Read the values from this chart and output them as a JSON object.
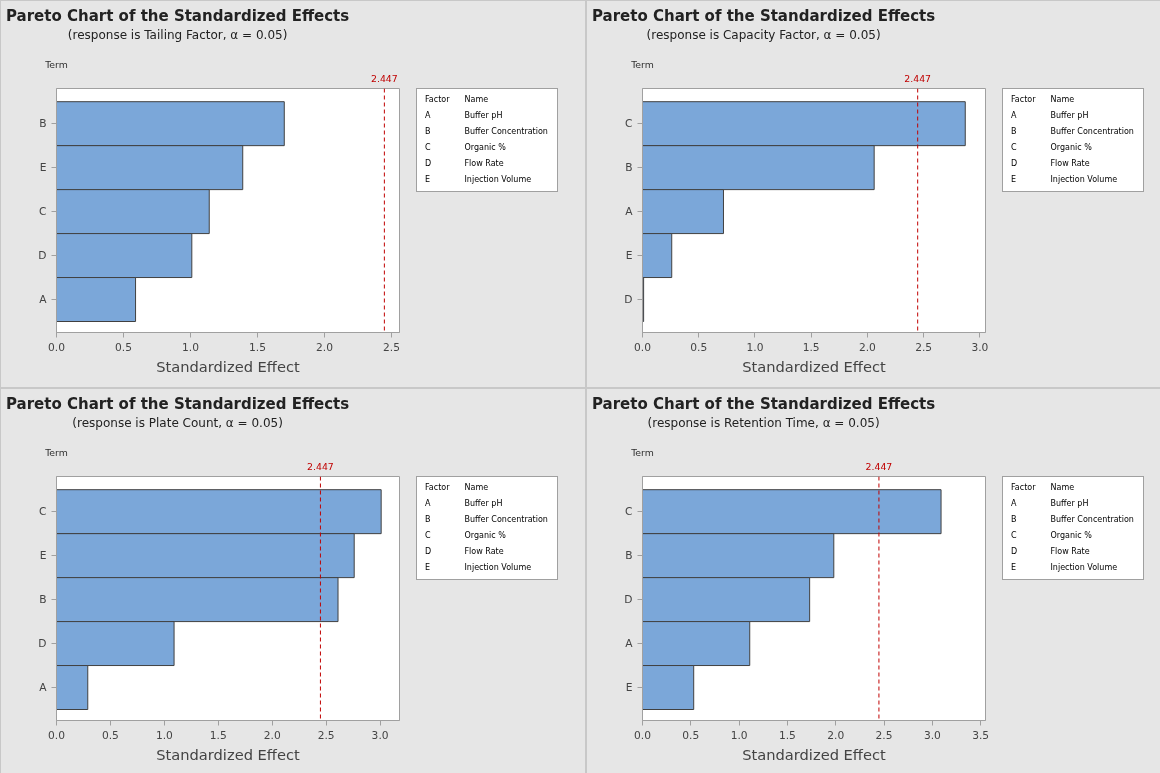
{
  "chart_data": [
    {
      "type": "bar",
      "orientation": "horizontal",
      "title": "Pareto Chart of the Standardized Effects",
      "subtitle": "(response is Tailing Factor, α = 0.05)",
      "xlabel": "Standardized Effect",
      "ylabel": "Term",
      "categories": [
        "B",
        "E",
        "C",
        "D",
        "A"
      ],
      "values": [
        1.7,
        1.39,
        1.14,
        1.01,
        0.59
      ],
      "color": "#7ba7d9",
      "xlim": [
        0,
        2.56
      ],
      "xticks": [
        {
          "value": 0,
          "label": "0.0"
        },
        0.5,
        {
          "value": 1,
          "label": "1.0"
        },
        1.5,
        {
          "value": 2,
          "label": "2.0"
        },
        2.5
      ],
      "ref_lines": [
        {
          "axis": "x",
          "value": 2.447,
          "label": "2.447",
          "color": "#c00000",
          "line_style": "dashed"
        }
      ],
      "annotations": [
        "Factor",
        "Name",
        "A",
        "Buffer pH",
        "B",
        "Buffer Concentration",
        "C",
        "Organic %",
        "D",
        "Flow Rate",
        "E",
        "Injection Volume"
      ]
    },
    {
      "type": "bar",
      "orientation": "horizontal",
      "title": "Pareto Chart of the Standardized Effects",
      "subtitle": "(response is Capacity Factor, α = 0.05)",
      "xlabel": "Standardized Effect",
      "ylabel": "Term",
      "categories": [
        "C",
        "B",
        "A",
        "E",
        "D"
      ],
      "values": [
        2.87,
        2.06,
        0.72,
        0.26,
        0.01
      ],
      "color": "#7ba7d9",
      "xlim": [
        0,
        3.05
      ],
      "xticks": [
        {
          "value": 0,
          "label": "0.0"
        },
        0.5,
        {
          "value": 1,
          "label": "1.0"
        },
        1.5,
        {
          "value": 2,
          "label": "2.0"
        },
        2.5,
        {
          "value": 3,
          "label": "3.0"
        }
      ],
      "ref_lines": [
        {
          "axis": "x",
          "value": 2.447,
          "label": "2.447",
          "color": "#c00000",
          "line_style": "dashed"
        }
      ],
      "annotations": [
        "Factor",
        "Name",
        "A",
        "Buffer pH",
        "B",
        "Buffer Concentration",
        "C",
        "Organic %",
        "D",
        "Flow Rate",
        "E",
        "Injection Volume"
      ]
    },
    {
      "type": "bar",
      "orientation": "horizontal",
      "title": "Pareto Chart of the Standardized Effects",
      "subtitle": "(response is Plate Count, α = 0.05)",
      "xlabel": "Standardized Effect",
      "ylabel": "Term",
      "categories": [
        "C",
        "E",
        "B",
        "D",
        "A"
      ],
      "values": [
        3.01,
        2.76,
        2.61,
        1.09,
        0.29
      ],
      "color": "#7ba7d9",
      "xlim": [
        0,
        3.18
      ],
      "xticks": [
        {
          "value": 0,
          "label": "0.0"
        },
        0.5,
        {
          "value": 1,
          "label": "1.0"
        },
        1.5,
        {
          "value": 2,
          "label": "2.0"
        },
        2.5,
        {
          "value": 3,
          "label": "3.0"
        }
      ],
      "ref_lines": [
        {
          "axis": "x",
          "value": 2.447,
          "label": "2.447",
          "color": "#c00000",
          "line_style": "dashed"
        }
      ],
      "annotations": [
        "Factor",
        "Name",
        "A",
        "Buffer pH",
        "B",
        "Buffer Concentration",
        "C",
        "Organic %",
        "D",
        "Flow Rate",
        "E",
        "Injection Volume"
      ]
    },
    {
      "type": "bar",
      "orientation": "horizontal",
      "title": "Pareto Chart of the Standardized Effects",
      "subtitle": "(response is Retention Time, α = 0.05)",
      "xlabel": "Standardized Effect",
      "ylabel": "Term",
      "categories": [
        "C",
        "B",
        "D",
        "A",
        "E"
      ],
      "values": [
        3.09,
        1.98,
        1.73,
        1.11,
        0.53
      ],
      "color": "#7ba7d9",
      "xlim": [
        0,
        3.55
      ],
      "xticks": [
        {
          "value": 0,
          "label": "0.0"
        },
        0.5,
        {
          "value": 1,
          "label": "1.0"
        },
        1.5,
        {
          "value": 2,
          "label": "2.0"
        },
        2.5,
        {
          "value": 3,
          "label": "3.0"
        },
        3.5
      ],
      "ref_lines": [
        {
          "axis": "x",
          "value": 2.447,
          "label": "2.447",
          "color": "#c00000",
          "line_style": "dashed"
        }
      ],
      "annotations": [
        "Factor",
        "Name",
        "A",
        "Buffer pH",
        "B",
        "Buffer Concentration",
        "C",
        "Organic %",
        "D",
        "Flow Rate",
        "E",
        "Injection Volume"
      ]
    }
  ]
}
